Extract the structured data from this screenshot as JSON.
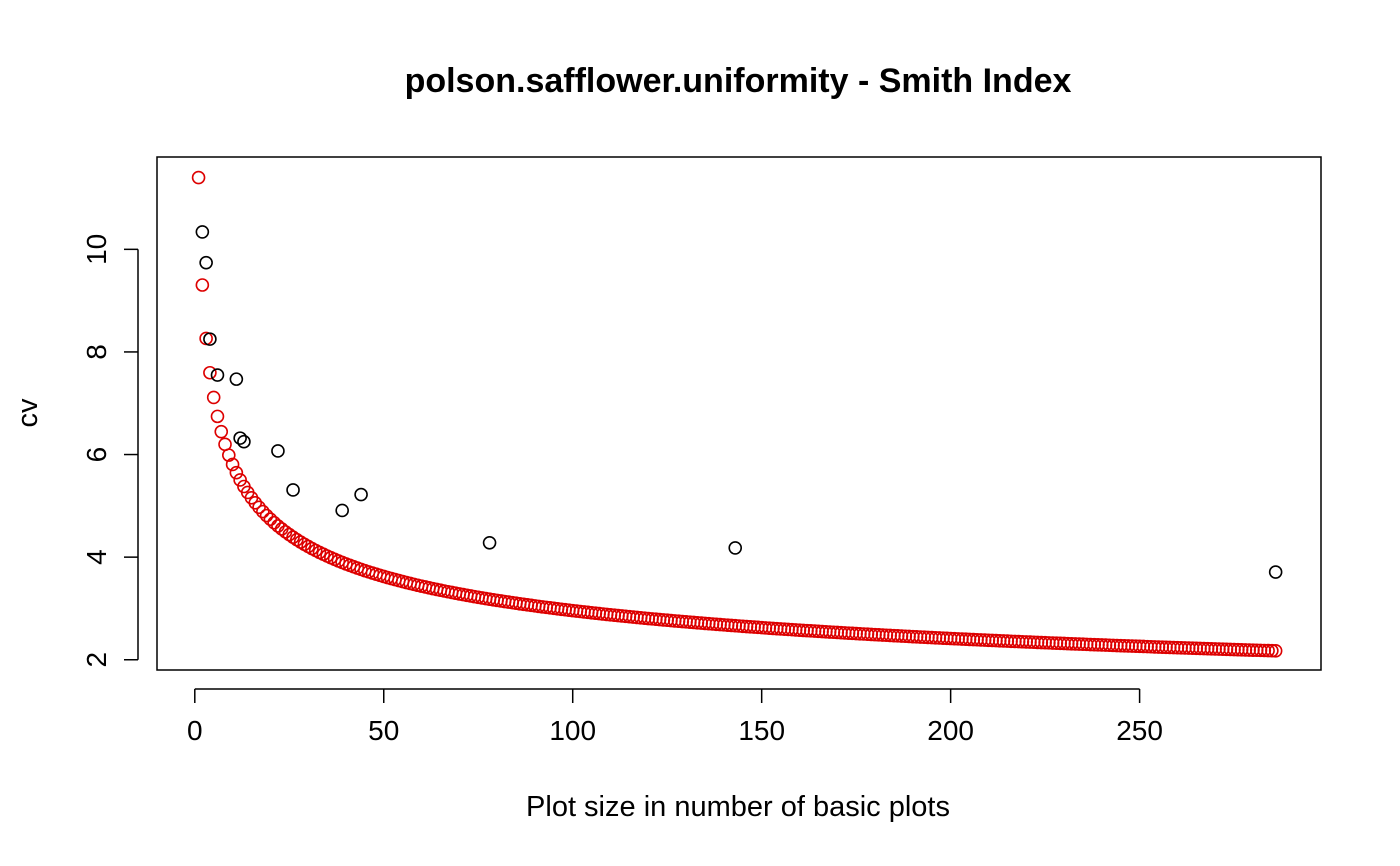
{
  "chart_data": {
    "type": "scatter",
    "title": "polson.safflower.uniformity - Smith Index",
    "xlabel": "Plot size in number of basic plots",
    "ylabel": "cv",
    "xlim": [
      -10,
      298
    ],
    "ylim": [
      1.8,
      11.8
    ],
    "xticks": [
      0,
      50,
      100,
      150,
      200,
      250
    ],
    "yticks": [
      2,
      4,
      6,
      8,
      10
    ],
    "grid": false,
    "legend": "none",
    "series": [
      {
        "color": "#000000",
        "marker": "open-circle",
        "points": [
          {
            "x": 2,
            "y": 10.34
          },
          {
            "x": 3,
            "y": 9.74
          },
          {
            "x": 4,
            "y": 8.25
          },
          {
            "x": 6,
            "y": 7.55
          },
          {
            "x": 11,
            "y": 7.47
          },
          {
            "x": 12,
            "y": 6.32
          },
          {
            "x": 13,
            "y": 6.25
          },
          {
            "x": 22,
            "y": 6.07
          },
          {
            "x": 26,
            "y": 5.31
          },
          {
            "x": 39,
            "y": 4.91
          },
          {
            "x": 44,
            "y": 5.22
          },
          {
            "x": 78,
            "y": 4.28
          },
          {
            "x": 143,
            "y": 4.18
          },
          {
            "x": 286,
            "y": 3.71
          }
        ]
      },
      {
        "color": "#dd0000",
        "marker": "open-circle",
        "model": {
          "form": "power",
          "a": 11.4,
          "b": -0.293
        },
        "x_range": [
          1,
          286
        ]
      }
    ]
  }
}
